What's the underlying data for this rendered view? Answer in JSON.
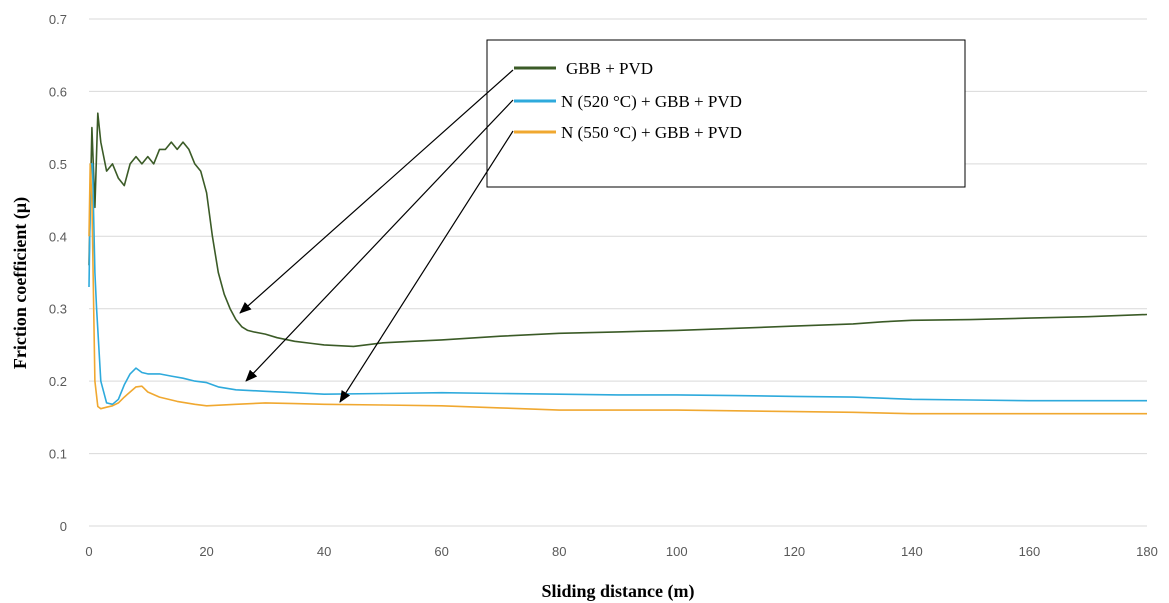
{
  "chart_data": {
    "type": "line",
    "xlabel": "Sliding distance  (m)",
    "ylabel": "Friction  coefficient (μ)",
    "xlim": [
      0,
      180
    ],
    "ylim": [
      0,
      0.7
    ],
    "xticks": [
      0,
      20,
      40,
      60,
      80,
      100,
      120,
      140,
      160,
      180
    ],
    "yticks": [
      0,
      0.1,
      0.2,
      0.3,
      0.4,
      0.5,
      0.6,
      0.7
    ],
    "ytick_labels": [
      "0",
      "0.1",
      "0.2",
      "0.3",
      "0.4",
      "0.5",
      "0.6",
      "0.7"
    ],
    "grid": "horizontal",
    "legend_position": "top-right (inside)",
    "series": [
      {
        "name": "GBB + PVD",
        "color": "#3b5b27",
        "x": [
          0,
          0.5,
          1,
          1.5,
          2,
          3,
          4,
          5,
          6,
          7,
          8,
          9,
          10,
          11,
          12,
          13,
          14,
          15,
          16,
          17,
          18,
          19,
          20,
          21,
          22,
          23,
          24,
          25,
          26,
          27,
          28,
          30,
          32,
          35,
          38,
          40,
          45,
          50,
          55,
          60,
          70,
          80,
          90,
          100,
          110,
          120,
          130,
          135,
          140,
          150,
          160,
          170,
          180
        ],
        "y": [
          0.36,
          0.55,
          0.44,
          0.57,
          0.53,
          0.49,
          0.5,
          0.48,
          0.47,
          0.5,
          0.51,
          0.5,
          0.51,
          0.5,
          0.52,
          0.52,
          0.53,
          0.52,
          0.53,
          0.52,
          0.5,
          0.49,
          0.46,
          0.4,
          0.35,
          0.32,
          0.3,
          0.285,
          0.275,
          0.27,
          0.268,
          0.265,
          0.26,
          0.255,
          0.252,
          0.25,
          0.248,
          0.253,
          0.255,
          0.257,
          0.262,
          0.266,
          0.268,
          0.27,
          0.273,
          0.276,
          0.279,
          0.282,
          0.284,
          0.285,
          0.287,
          0.289,
          0.292
        ]
      },
      {
        "name": "N (520 °C) + GBB + PVD",
        "color": "#2eaadc",
        "x": [
          0,
          0.3,
          0.6,
          1,
          1.3,
          2,
          3,
          4,
          5,
          6,
          7,
          8,
          9,
          10,
          12,
          14,
          16,
          18,
          20,
          22,
          25,
          30,
          35,
          40,
          50,
          60,
          70,
          80,
          90,
          100,
          110,
          120,
          130,
          140,
          150,
          160,
          170,
          180
        ],
        "y": [
          0.33,
          0.5,
          0.5,
          0.35,
          0.3,
          0.2,
          0.17,
          0.168,
          0.175,
          0.195,
          0.21,
          0.218,
          0.212,
          0.21,
          0.21,
          0.207,
          0.204,
          0.2,
          0.198,
          0.192,
          0.188,
          0.186,
          0.184,
          0.182,
          0.183,
          0.184,
          0.183,
          0.182,
          0.181,
          0.181,
          0.18,
          0.179,
          0.178,
          0.175,
          0.174,
          0.173,
          0.173,
          0.173
        ]
      },
      {
        "name": "N (550 °C) + GBB + PVD",
        "color": "#f0a830",
        "x": [
          0,
          0.2,
          0.5,
          1,
          1.5,
          2,
          3,
          4,
          5,
          6,
          7,
          8,
          9,
          10,
          12,
          15,
          18,
          20,
          25,
          30,
          35,
          40,
          50,
          60,
          70,
          80,
          90,
          100,
          110,
          120,
          130,
          140,
          150,
          160,
          170,
          180
        ],
        "y": [
          0.4,
          0.5,
          0.45,
          0.2,
          0.165,
          0.162,
          0.164,
          0.166,
          0.17,
          0.178,
          0.185,
          0.192,
          0.193,
          0.185,
          0.178,
          0.172,
          0.168,
          0.166,
          0.168,
          0.17,
          0.169,
          0.168,
          0.167,
          0.166,
          0.163,
          0.16,
          0.16,
          0.16,
          0.159,
          0.158,
          0.157,
          0.155,
          0.155,
          0.155,
          0.155,
          0.155
        ]
      }
    ]
  }
}
